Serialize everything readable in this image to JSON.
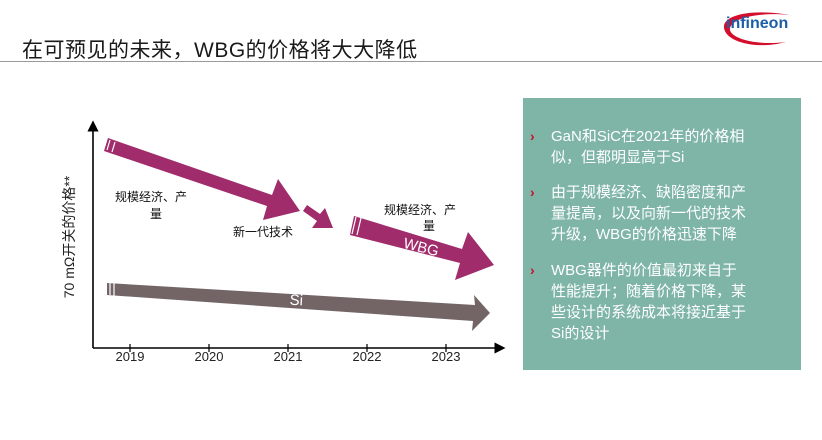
{
  "header": {
    "title": "在可预见的未来，WBG的价格将大大降低",
    "logo_text": "infineon"
  },
  "chart": {
    "ylabel": "70 mΩ开关的价格**",
    "years": [
      "2019",
      "2020",
      "2021",
      "2022",
      "2023"
    ],
    "arrow_labels": {
      "wbg": "WBG",
      "si": "Si"
    },
    "annotations": {
      "scale_1_line1": "规模经济、产",
      "scale_1_line2": "量",
      "next_gen": "新一代技术",
      "scale_2_line1": "规模经济、产",
      "scale_2_line2": "量"
    },
    "colors": {
      "wbg": "#a02c6c",
      "si": "#736566",
      "axis": "#000000"
    }
  },
  "panel": {
    "background": "#7eb5a6",
    "bullet_glyph": "›",
    "points": [
      {
        "lines": [
          "GaN和SiC在2021年的价格相",
          "似，但都明显高于Si"
        ]
      },
      {
        "lines": [
          "由于规模经济、缺陷密度和产",
          "量提高，以及向新一代的技术",
          "升级，WBG的价格迅速下降"
        ]
      },
      {
        "lines": [
          "WBG器件的价值最初来自于",
          "性能提升；随着价格下降，某",
          "些设计的系统成本将接近基于",
          "Si的设计"
        ]
      }
    ]
  }
}
